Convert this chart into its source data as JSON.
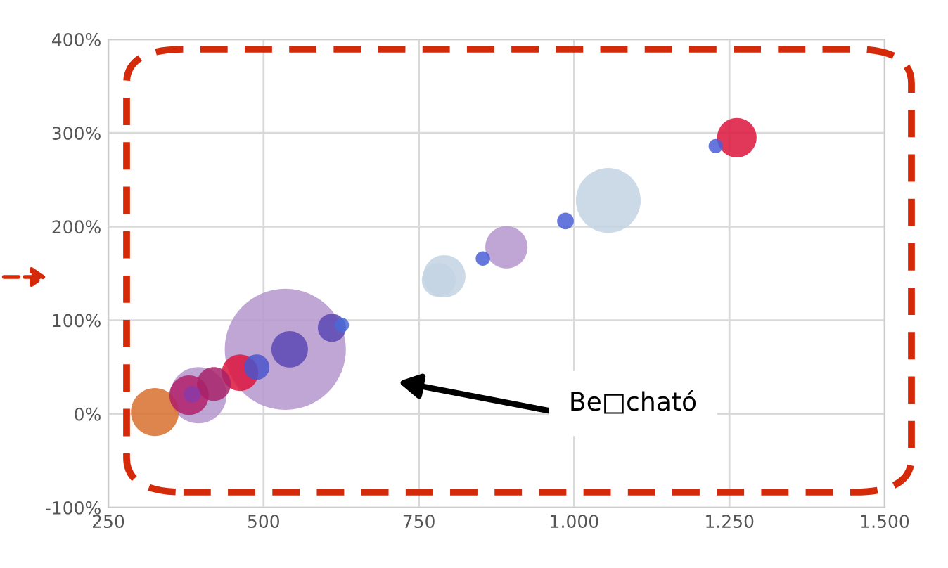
{
  "chart_data": {
    "type": "bubble",
    "x": [
      325,
      395,
      380,
      385,
      420,
      462,
      489,
      535,
      542,
      610,
      626,
      791,
      782,
      853,
      891,
      986,
      1055,
      1228,
      1262
    ],
    "values": [
      2,
      20,
      20,
      21,
      32,
      44,
      50,
      69,
      69,
      92,
      95,
      147,
      143,
      166,
      178,
      206,
      228,
      286,
      295
    ],
    "sizes": [
      0.156,
      0.216,
      0.106,
      0.019,
      0.078,
      0.091,
      0.044,
      1,
      0.091,
      0.054,
      0.014,
      0.122,
      0.078,
      0.014,
      0.122,
      0.019,
      0.286,
      0.014,
      0.106
    ],
    "colors": [
      "#d8702e",
      "#b497cc",
      "#b0206a",
      "#8a3aa8",
      "#a8226a",
      "#dc143c",
      "#4a55cc",
      "#b497cc",
      "#5a46b4",
      "#5a46b4",
      "#4a6ad6",
      "#c3d3e3",
      "#c3d3e3",
      "#4a5fd6",
      "#b497cc",
      "#4a5fd6",
      "#c3d3e3",
      "#4a5fd6",
      "#dc143c"
    ],
    "xlim": [
      250,
      1500
    ],
    "xticks": [
      250,
      500,
      750,
      {
        "value": 1000,
        "label": "1.000"
      },
      {
        "value": 1250,
        "label": "1.250"
      },
      {
        "value": 1500,
        "label": "1.500"
      }
    ],
    "ylim": [
      -100,
      400
    ],
    "yticks": [
      {
        "value": -100,
        "label": "-100%"
      },
      {
        "value": 0,
        "label": "0%"
      },
      {
        "value": 100,
        "label": "100%"
      },
      {
        "value": 200,
        "label": "200%"
      },
      {
        "value": 300,
        "label": "300%"
      },
      {
        "value": 400,
        "label": "400%"
      }
    ],
    "grid": true,
    "annotations": [
      "Be□cható"
    ]
  }
}
